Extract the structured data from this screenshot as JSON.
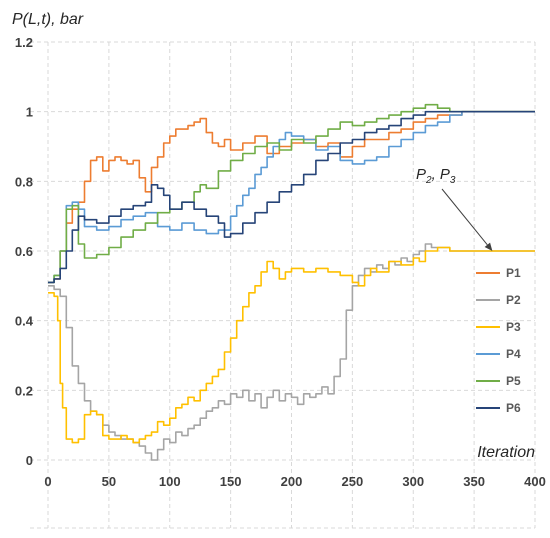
{
  "chart_data": {
    "type": "line",
    "ylabel": "P(L,t), bar",
    "xlabel": "Iteration",
    "xlim": [
      0,
      400
    ],
    "ylim": [
      0,
      1.2
    ],
    "x_ticks": [
      "0",
      "50",
      "100",
      "150",
      "200",
      "250",
      "300",
      "350",
      "400"
    ],
    "y_ticks": [
      "0",
      "0.2",
      "0.4",
      "0.6",
      "0.8",
      "1",
      "1.2"
    ],
    "grid": "dashed, both axes",
    "legend_position": "right",
    "annotation": {
      "text": "P",
      "sub1": "2",
      "sep": ", P",
      "sub2": "3",
      "points_to": [
        365,
        0.6
      ]
    },
    "series": [
      {
        "name": "P1",
        "color": "#ED7D31",
        "points": [
          [
            0,
            0.51
          ],
          [
            5,
            0.52
          ],
          [
            10,
            0.6
          ],
          [
            15,
            0.68
          ],
          [
            20,
            0.72
          ],
          [
            25,
            0.74
          ],
          [
            30,
            0.8
          ],
          [
            35,
            0.86
          ],
          [
            40,
            0.87
          ],
          [
            45,
            0.83
          ],
          [
            50,
            0.86
          ],
          [
            55,
            0.87
          ],
          [
            60,
            0.86
          ],
          [
            65,
            0.85
          ],
          [
            70,
            0.86
          ],
          [
            75,
            0.81
          ],
          [
            80,
            0.77
          ],
          [
            85,
            0.84
          ],
          [
            90,
            0.87
          ],
          [
            95,
            0.91
          ],
          [
            100,
            0.93
          ],
          [
            105,
            0.95
          ],
          [
            110,
            0.95
          ],
          [
            115,
            0.96
          ],
          [
            120,
            0.97
          ],
          [
            125,
            0.98
          ],
          [
            130,
            0.94
          ],
          [
            135,
            0.91
          ],
          [
            140,
            0.9
          ],
          [
            145,
            0.92
          ],
          [
            150,
            0.89
          ],
          [
            160,
            0.91
          ],
          [
            170,
            0.93
          ],
          [
            180,
            0.88
          ],
          [
            190,
            0.9
          ],
          [
            200,
            0.91
          ],
          [
            210,
            0.92
          ],
          [
            220,
            0.9
          ],
          [
            230,
            0.91
          ],
          [
            240,
            0.87
          ],
          [
            250,
            0.9
          ],
          [
            260,
            0.92
          ],
          [
            270,
            0.92
          ],
          [
            280,
            0.94
          ],
          [
            290,
            0.95
          ],
          [
            300,
            0.97
          ],
          [
            310,
            0.98
          ],
          [
            320,
            0.99
          ],
          [
            330,
            0.99
          ],
          [
            340,
            1.0
          ],
          [
            360,
            1.0
          ],
          [
            400,
            1.0
          ]
        ]
      },
      {
        "name": "P2",
        "color": "#A5A5A5",
        "points": [
          [
            0,
            0.5
          ],
          [
            5,
            0.49
          ],
          [
            10,
            0.47
          ],
          [
            15,
            0.38
          ],
          [
            20,
            0.27
          ],
          [
            25,
            0.22
          ],
          [
            30,
            0.17
          ],
          [
            35,
            0.14
          ],
          [
            40,
            0.13
          ],
          [
            45,
            0.1
          ],
          [
            50,
            0.08
          ],
          [
            55,
            0.07
          ],
          [
            60,
            0.06
          ],
          [
            65,
            0.06
          ],
          [
            70,
            0.05
          ],
          [
            75,
            0.04
          ],
          [
            80,
            0.02
          ],
          [
            85,
            0.0
          ],
          [
            90,
            0.03
          ],
          [
            95,
            0.06
          ],
          [
            100,
            0.05
          ],
          [
            105,
            0.08
          ],
          [
            110,
            0.07
          ],
          [
            115,
            0.09
          ],
          [
            120,
            0.1
          ],
          [
            125,
            0.12
          ],
          [
            130,
            0.14
          ],
          [
            135,
            0.15
          ],
          [
            140,
            0.17
          ],
          [
            145,
            0.16
          ],
          [
            150,
            0.19
          ],
          [
            155,
            0.18
          ],
          [
            160,
            0.2
          ],
          [
            165,
            0.17
          ],
          [
            170,
            0.19
          ],
          [
            175,
            0.15
          ],
          [
            180,
            0.18
          ],
          [
            185,
            0.2
          ],
          [
            190,
            0.17
          ],
          [
            195,
            0.19
          ],
          [
            200,
            0.18
          ],
          [
            205,
            0.16
          ],
          [
            210,
            0.19
          ],
          [
            215,
            0.18
          ],
          [
            220,
            0.19
          ],
          [
            225,
            0.21
          ],
          [
            230,
            0.19
          ],
          [
            235,
            0.24
          ],
          [
            240,
            0.29
          ],
          [
            245,
            0.43
          ],
          [
            250,
            0.5
          ],
          [
            255,
            0.53
          ],
          [
            260,
            0.55
          ],
          [
            265,
            0.54
          ],
          [
            270,
            0.56
          ],
          [
            275,
            0.55
          ],
          [
            280,
            0.57
          ],
          [
            285,
            0.56
          ],
          [
            290,
            0.58
          ],
          [
            295,
            0.57
          ],
          [
            300,
            0.59
          ],
          [
            305,
            0.6
          ],
          [
            310,
            0.62
          ],
          [
            315,
            0.61
          ],
          [
            320,
            0.61
          ],
          [
            330,
            0.6
          ],
          [
            340,
            0.6
          ],
          [
            360,
            0.6
          ],
          [
            400,
            0.6
          ]
        ]
      },
      {
        "name": "P3",
        "color": "#FFC000",
        "points": [
          [
            0,
            0.48
          ],
          [
            5,
            0.47
          ],
          [
            8,
            0.4
          ],
          [
            10,
            0.22
          ],
          [
            12,
            0.15
          ],
          [
            15,
            0.06
          ],
          [
            20,
            0.05
          ],
          [
            25,
            0.06
          ],
          [
            30,
            0.13
          ],
          [
            35,
            0.14
          ],
          [
            40,
            0.13
          ],
          [
            45,
            0.07
          ],
          [
            50,
            0.06
          ],
          [
            55,
            0.06
          ],
          [
            60,
            0.07
          ],
          [
            65,
            0.06
          ],
          [
            70,
            0.05
          ],
          [
            75,
            0.06
          ],
          [
            80,
            0.07
          ],
          [
            85,
            0.08
          ],
          [
            90,
            0.11
          ],
          [
            95,
            0.1
          ],
          [
            100,
            0.12
          ],
          [
            105,
            0.15
          ],
          [
            110,
            0.16
          ],
          [
            115,
            0.18
          ],
          [
            120,
            0.17
          ],
          [
            125,
            0.2
          ],
          [
            130,
            0.22
          ],
          [
            135,
            0.24
          ],
          [
            140,
            0.26
          ],
          [
            145,
            0.31
          ],
          [
            150,
            0.35
          ],
          [
            155,
            0.4
          ],
          [
            160,
            0.44
          ],
          [
            165,
            0.48
          ],
          [
            170,
            0.5
          ],
          [
            175,
            0.54
          ],
          [
            180,
            0.57
          ],
          [
            185,
            0.55
          ],
          [
            190,
            0.52
          ],
          [
            195,
            0.54
          ],
          [
            200,
            0.55
          ],
          [
            210,
            0.54
          ],
          [
            220,
            0.55
          ],
          [
            230,
            0.54
          ],
          [
            240,
            0.53
          ],
          [
            250,
            0.51
          ],
          [
            255,
            0.5
          ],
          [
            260,
            0.53
          ],
          [
            265,
            0.55
          ],
          [
            270,
            0.54
          ],
          [
            280,
            0.57
          ],
          [
            290,
            0.56
          ],
          [
            300,
            0.58
          ],
          [
            305,
            0.57
          ],
          [
            310,
            0.6
          ],
          [
            320,
            0.61
          ],
          [
            330,
            0.6
          ],
          [
            340,
            0.6
          ],
          [
            360,
            0.6
          ],
          [
            400,
            0.6
          ]
        ]
      },
      {
        "name": "P4",
        "color": "#5B9BD5",
        "points": [
          [
            0,
            0.51
          ],
          [
            5,
            0.53
          ],
          [
            10,
            0.6
          ],
          [
            15,
            0.73
          ],
          [
            20,
            0.74
          ],
          [
            25,
            0.72
          ],
          [
            30,
            0.67
          ],
          [
            40,
            0.66
          ],
          [
            50,
            0.67
          ],
          [
            60,
            0.69
          ],
          [
            70,
            0.7
          ],
          [
            80,
            0.71
          ],
          [
            90,
            0.67
          ],
          [
            100,
            0.66
          ],
          [
            110,
            0.68
          ],
          [
            120,
            0.66
          ],
          [
            130,
            0.65
          ],
          [
            140,
            0.66
          ],
          [
            150,
            0.7
          ],
          [
            155,
            0.73
          ],
          [
            160,
            0.76
          ],
          [
            165,
            0.78
          ],
          [
            170,
            0.82
          ],
          [
            175,
            0.84
          ],
          [
            180,
            0.87
          ],
          [
            185,
            0.9
          ],
          [
            190,
            0.92
          ],
          [
            195,
            0.94
          ],
          [
            200,
            0.93
          ],
          [
            210,
            0.92
          ],
          [
            220,
            0.89
          ],
          [
            230,
            0.9
          ],
          [
            240,
            0.86
          ],
          [
            250,
            0.85
          ],
          [
            260,
            0.86
          ],
          [
            270,
            0.87
          ],
          [
            280,
            0.9
          ],
          [
            290,
            0.92
          ],
          [
            300,
            0.94
          ],
          [
            310,
            0.96
          ],
          [
            320,
            0.97
          ],
          [
            330,
            0.99
          ],
          [
            340,
            1.0
          ],
          [
            360,
            1.0
          ],
          [
            400,
            1.0
          ]
        ]
      },
      {
        "name": "P5",
        "color": "#70AD47",
        "points": [
          [
            0,
            0.51
          ],
          [
            5,
            0.53
          ],
          [
            10,
            0.6
          ],
          [
            15,
            0.72
          ],
          [
            20,
            0.73
          ],
          [
            25,
            0.62
          ],
          [
            30,
            0.58
          ],
          [
            40,
            0.59
          ],
          [
            50,
            0.61
          ],
          [
            60,
            0.64
          ],
          [
            70,
            0.66
          ],
          [
            80,
            0.68
          ],
          [
            90,
            0.71
          ],
          [
            100,
            0.72
          ],
          [
            110,
            0.74
          ],
          [
            120,
            0.77
          ],
          [
            125,
            0.79
          ],
          [
            130,
            0.78
          ],
          [
            140,
            0.83
          ],
          [
            150,
            0.86
          ],
          [
            160,
            0.88
          ],
          [
            170,
            0.9
          ],
          [
            180,
            0.91
          ],
          [
            190,
            0.89
          ],
          [
            200,
            0.92
          ],
          [
            210,
            0.91
          ],
          [
            220,
            0.93
          ],
          [
            230,
            0.95
          ],
          [
            240,
            0.97
          ],
          [
            250,
            0.96
          ],
          [
            260,
            0.97
          ],
          [
            270,
            0.98
          ],
          [
            280,
            0.99
          ],
          [
            290,
            1.0
          ],
          [
            300,
            1.01
          ],
          [
            310,
            1.02
          ],
          [
            320,
            1.01
          ],
          [
            330,
            1.0
          ],
          [
            340,
            1.0
          ],
          [
            360,
            1.0
          ],
          [
            400,
            1.0
          ]
        ]
      },
      {
        "name": "P6",
        "color": "#264478",
        "points": [
          [
            0,
            0.51
          ],
          [
            5,
            0.52
          ],
          [
            10,
            0.55
          ],
          [
            15,
            0.6
          ],
          [
            20,
            0.66
          ],
          [
            25,
            0.7
          ],
          [
            30,
            0.69
          ],
          [
            40,
            0.68
          ],
          [
            50,
            0.7
          ],
          [
            60,
            0.72
          ],
          [
            70,
            0.73
          ],
          [
            80,
            0.74
          ],
          [
            85,
            0.79
          ],
          [
            90,
            0.78
          ],
          [
            95,
            0.76
          ],
          [
            100,
            0.72
          ],
          [
            110,
            0.74
          ],
          [
            120,
            0.72
          ],
          [
            130,
            0.7
          ],
          [
            140,
            0.68
          ],
          [
            145,
            0.64
          ],
          [
            150,
            0.65
          ],
          [
            160,
            0.68
          ],
          [
            170,
            0.71
          ],
          [
            180,
            0.74
          ],
          [
            190,
            0.77
          ],
          [
            200,
            0.79
          ],
          [
            210,
            0.82
          ],
          [
            220,
            0.86
          ],
          [
            230,
            0.88
          ],
          [
            240,
            0.91
          ],
          [
            250,
            0.92
          ],
          [
            260,
            0.94
          ],
          [
            270,
            0.95
          ],
          [
            280,
            0.96
          ],
          [
            290,
            0.98
          ],
          [
            300,
            0.99
          ],
          [
            310,
            1.0
          ],
          [
            320,
            1.0
          ],
          [
            340,
            1.0
          ],
          [
            360,
            1.0
          ],
          [
            400,
            1.0
          ]
        ]
      }
    ]
  }
}
